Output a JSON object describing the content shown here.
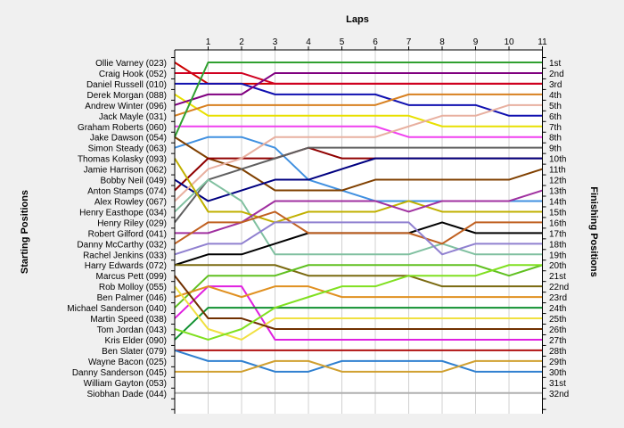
{
  "chart_data": {
    "type": "line",
    "title": "Laps",
    "ylabel": "Starting Positions",
    "y2label": "Finishing Positions",
    "laps": [
      0,
      1,
      2,
      3,
      4,
      5,
      6,
      7,
      8,
      9,
      10,
      11
    ],
    "lap_tick_labels": [
      "1",
      "2",
      "3",
      "4",
      "5",
      "6",
      "7",
      "8",
      "9",
      "10",
      "11"
    ],
    "position_labels": [
      "1st",
      "2nd",
      "3rd",
      "4th",
      "5th",
      "6th",
      "7th",
      "8th",
      "9th",
      "10th",
      "11th",
      "12th",
      "13th",
      "14th",
      "15th",
      "16th",
      "17th",
      "18th",
      "19th",
      "20th",
      "21st",
      "22nd",
      "23rd",
      "24th",
      "25th",
      "26th",
      "27th",
      "28th",
      "29th",
      "30th",
      "31st",
      "32nd"
    ],
    "grid": "vertical",
    "series": [
      {
        "name": "Ollie Varney (023)",
        "color": "#cc0000",
        "positions": [
          1,
          3,
          3,
          3,
          3,
          3,
          3,
          3,
          3,
          3,
          3,
          3
        ]
      },
      {
        "name": "Craig Hook (052)",
        "color": "#d00020",
        "positions": [
          2,
          2,
          2,
          3,
          3,
          3,
          3,
          3,
          3,
          3,
          3,
          3
        ]
      },
      {
        "name": "Daniel Russell (010)",
        "color": "#1010b0",
        "positions": [
          3,
          3,
          3,
          4,
          4,
          4,
          4,
          5,
          5,
          5,
          6,
          6
        ]
      },
      {
        "name": "Derek Morgan (088)",
        "color": "#e8e000",
        "positions": [
          4,
          6,
          6,
          6,
          6,
          6,
          6,
          6,
          7,
          7,
          7,
          7
        ]
      },
      {
        "name": "Andrew Winter (096)",
        "color": "#800080",
        "positions": [
          5,
          4,
          4,
          2,
          2,
          2,
          2,
          2,
          2,
          2,
          2,
          2
        ]
      },
      {
        "name": "Jack Mayle (031)",
        "color": "#d88020",
        "positions": [
          6,
          5,
          5,
          5,
          5,
          5,
          5,
          4,
          4,
          4,
          4,
          4
        ]
      },
      {
        "name": "Graham Roberts (060)",
        "color": "#f040f0",
        "positions": [
          7,
          7,
          7,
          7,
          7,
          7,
          7,
          8,
          8,
          8,
          8,
          8
        ]
      },
      {
        "name": "Jake Dawson (054)",
        "color": "#4090e0",
        "positions": [
          9,
          8,
          8,
          9,
          12,
          13,
          14,
          14,
          14,
          14,
          14,
          14
        ]
      },
      {
        "name": "Simon Steady (063)",
        "color": "#804000",
        "positions": [
          8,
          10,
          11,
          13,
          13,
          13,
          12,
          12,
          12,
          12,
          12,
          11
        ]
      },
      {
        "name": "Thomas Kolasky (093)",
        "color": "#900000",
        "positions": [
          13,
          10,
          10,
          10,
          9,
          10,
          10,
          10,
          10,
          10,
          10,
          10
        ]
      },
      {
        "name": "Jamie Harrison (062)",
        "color": "#606060",
        "positions": [
          16,
          12,
          11,
          10,
          9,
          9,
          9,
          9,
          9,
          9,
          9,
          9
        ]
      },
      {
        "name": "Bobby Neil (049)",
        "color": "#000080",
        "positions": [
          12,
          14,
          13,
          12,
          12,
          11,
          10,
          10,
          10,
          10,
          10,
          10
        ]
      },
      {
        "name": "Anton Stamps (074)",
        "color": "#80c0a0",
        "positions": [
          15,
          12,
          14,
          19,
          19,
          19,
          19,
          19,
          18,
          19,
          19,
          19
        ]
      },
      {
        "name": "Alex Rowley (067)",
        "color": "#e8b0a0",
        "positions": [
          14,
          11,
          10,
          8,
          8,
          8,
          8,
          7,
          6,
          6,
          5,
          5
        ]
      },
      {
        "name": "Henry Easthope (034)",
        "color": "#c0b000",
        "positions": [
          10,
          15,
          15,
          16,
          15,
          15,
          15,
          14,
          15,
          15,
          15,
          15
        ]
      },
      {
        "name": "Henry Riley (029)",
        "color": "#a030a0",
        "positions": [
          17,
          17,
          16,
          14,
          14,
          14,
          14,
          15,
          14,
          14,
          14,
          13
        ]
      },
      {
        "name": "Robert Gilford (041)",
        "color": "#000000",
        "positions": [
          20,
          19,
          19,
          18,
          17,
          17,
          17,
          17,
          16,
          17,
          17,
          17
        ]
      },
      {
        "name": "Danny McCarthy (032)",
        "color": "#c06020",
        "positions": [
          18,
          16,
          16,
          15,
          17,
          17,
          17,
          17,
          18,
          16,
          16,
          16
        ]
      },
      {
        "name": "Rachel Jenkins (033)",
        "color": "#9080d0",
        "positions": [
          19,
          18,
          18,
          16,
          16,
          16,
          16,
          16,
          19,
          18,
          18,
          18
        ]
      },
      {
        "name": "Harry Edwards (072)",
        "color": "#7a6a10",
        "positions": [
          20,
          20,
          20,
          20,
          21,
          21,
          21,
          21,
          22,
          22,
          22,
          22
        ]
      },
      {
        "name": "Marcus Pett (099)",
        "color": "#60c020",
        "positions": [
          24,
          21,
          21,
          21,
          20,
          20,
          20,
          20,
          20,
          20,
          21,
          20
        ]
      },
      {
        "name": "Rob Molloy (055)",
        "color": "#e020e0",
        "positions": [
          25,
          22,
          22,
          27,
          27,
          27,
          27,
          27,
          27,
          27,
          27,
          27
        ]
      },
      {
        "name": "Ben Palmer (046)",
        "color": "#e09020",
        "positions": [
          23,
          22,
          23,
          22,
          22,
          23,
          23,
          23,
          23,
          23,
          23,
          23
        ]
      },
      {
        "name": "Michael Sanderson (040)",
        "color": "#109030",
        "positions": [
          27,
          24,
          24,
          24,
          24,
          24,
          24,
          24,
          24,
          24,
          24,
          24
        ]
      },
      {
        "name": "Martin Speed (038)",
        "color": "#f0e040",
        "positions": [
          22,
          26,
          27,
          25,
          25,
          25,
          25,
          25,
          25,
          25,
          25,
          25
        ]
      },
      {
        "name": "Tom Jordan (043)",
        "color": "#703000",
        "positions": [
          21,
          25,
          25,
          26,
          26,
          26,
          26,
          26,
          26,
          26,
          26,
          26
        ]
      },
      {
        "name": "Kris Elder (090)",
        "color": "#80e020",
        "positions": [
          26,
          27,
          26,
          24,
          23,
          22,
          22,
          21,
          21,
          21,
          20,
          20
        ]
      },
      {
        "name": "Ben Slater (079)",
        "color": "#30a030",
        "positions": [
          8,
          1,
          1,
          1,
          1,
          1,
          1,
          1,
          1,
          1,
          1,
          1
        ]
      },
      {
        "name": "Wayne Bacon (025)",
        "color": "#b01010",
        "positions": [
          28,
          28,
          28,
          28,
          28,
          28,
          28,
          28,
          28,
          28,
          28,
          28
        ]
      },
      {
        "name": "Danny Sanderson (045)",
        "color": "#3080d0",
        "positions": [
          28,
          29,
          29,
          30,
          30,
          29,
          29,
          29,
          29,
          30,
          30,
          30
        ]
      },
      {
        "name": "William Gayton (053)",
        "color": "#d0a030",
        "positions": [
          30,
          30,
          30,
          29,
          29,
          30,
          30,
          30,
          30,
          29,
          29,
          29
        ]
      },
      {
        "name": "Siobhan Dade (044)",
        "color": "#b0b0b0",
        "positions": [
          32,
          32,
          32,
          32,
          32,
          32,
          32,
          32,
          32,
          32,
          32,
          32
        ]
      }
    ]
  }
}
